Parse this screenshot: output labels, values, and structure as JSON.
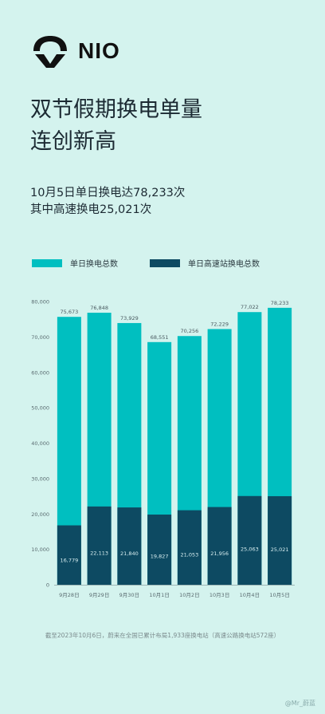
{
  "brand": {
    "name": "NIO"
  },
  "headline": {
    "line1": "双节假期换电单量",
    "line2": "连创新高"
  },
  "subtitle": {
    "line1": "10月5日单日换电达78,233次",
    "line2": "其中高速换电25,021次"
  },
  "colors": {
    "background": "#d4f3ee",
    "total": "#00bfc0",
    "highway": "#0d4a62",
    "ink": "#1c2a33"
  },
  "chart_data": {
    "type": "bar",
    "stacked": "overlay",
    "categories": [
      "9月28日",
      "9月29日",
      "9月30日",
      "10月1日",
      "10月2日",
      "10月3日",
      "10月4日",
      "10月5日"
    ],
    "series": [
      {
        "name": "单日换电总数",
        "values": [
          75673,
          76848,
          73929,
          68551,
          70256,
          72229,
          77022,
          78233
        ],
        "labels": [
          "75,673",
          "76,848",
          "73,929",
          "68,551",
          "70,256",
          "72,229",
          "77,022",
          "78,233"
        ]
      },
      {
        "name": "单日高速站换电总数",
        "values": [
          16779,
          22113,
          21840,
          19827,
          21053,
          21956,
          25063,
          25021
        ],
        "labels": [
          "16,779",
          "22,113",
          "21,840",
          "19,827",
          "21,053",
          "21,956",
          "25,063",
          "25,021"
        ]
      }
    ],
    "yticks": [
      "0",
      "10,000",
      "20,000",
      "30,000",
      "40,000",
      "50,000",
      "60,000",
      "70,000",
      "80,000"
    ],
    "ylim": [
      0,
      80000
    ],
    "grid": false,
    "legend": "top-left"
  },
  "footnote": "截至2023年10月6日，蔚来在全国已累计布局1,933座换电站（高速公路换电站572座）",
  "watermark": "@Mr_蔚蓝"
}
